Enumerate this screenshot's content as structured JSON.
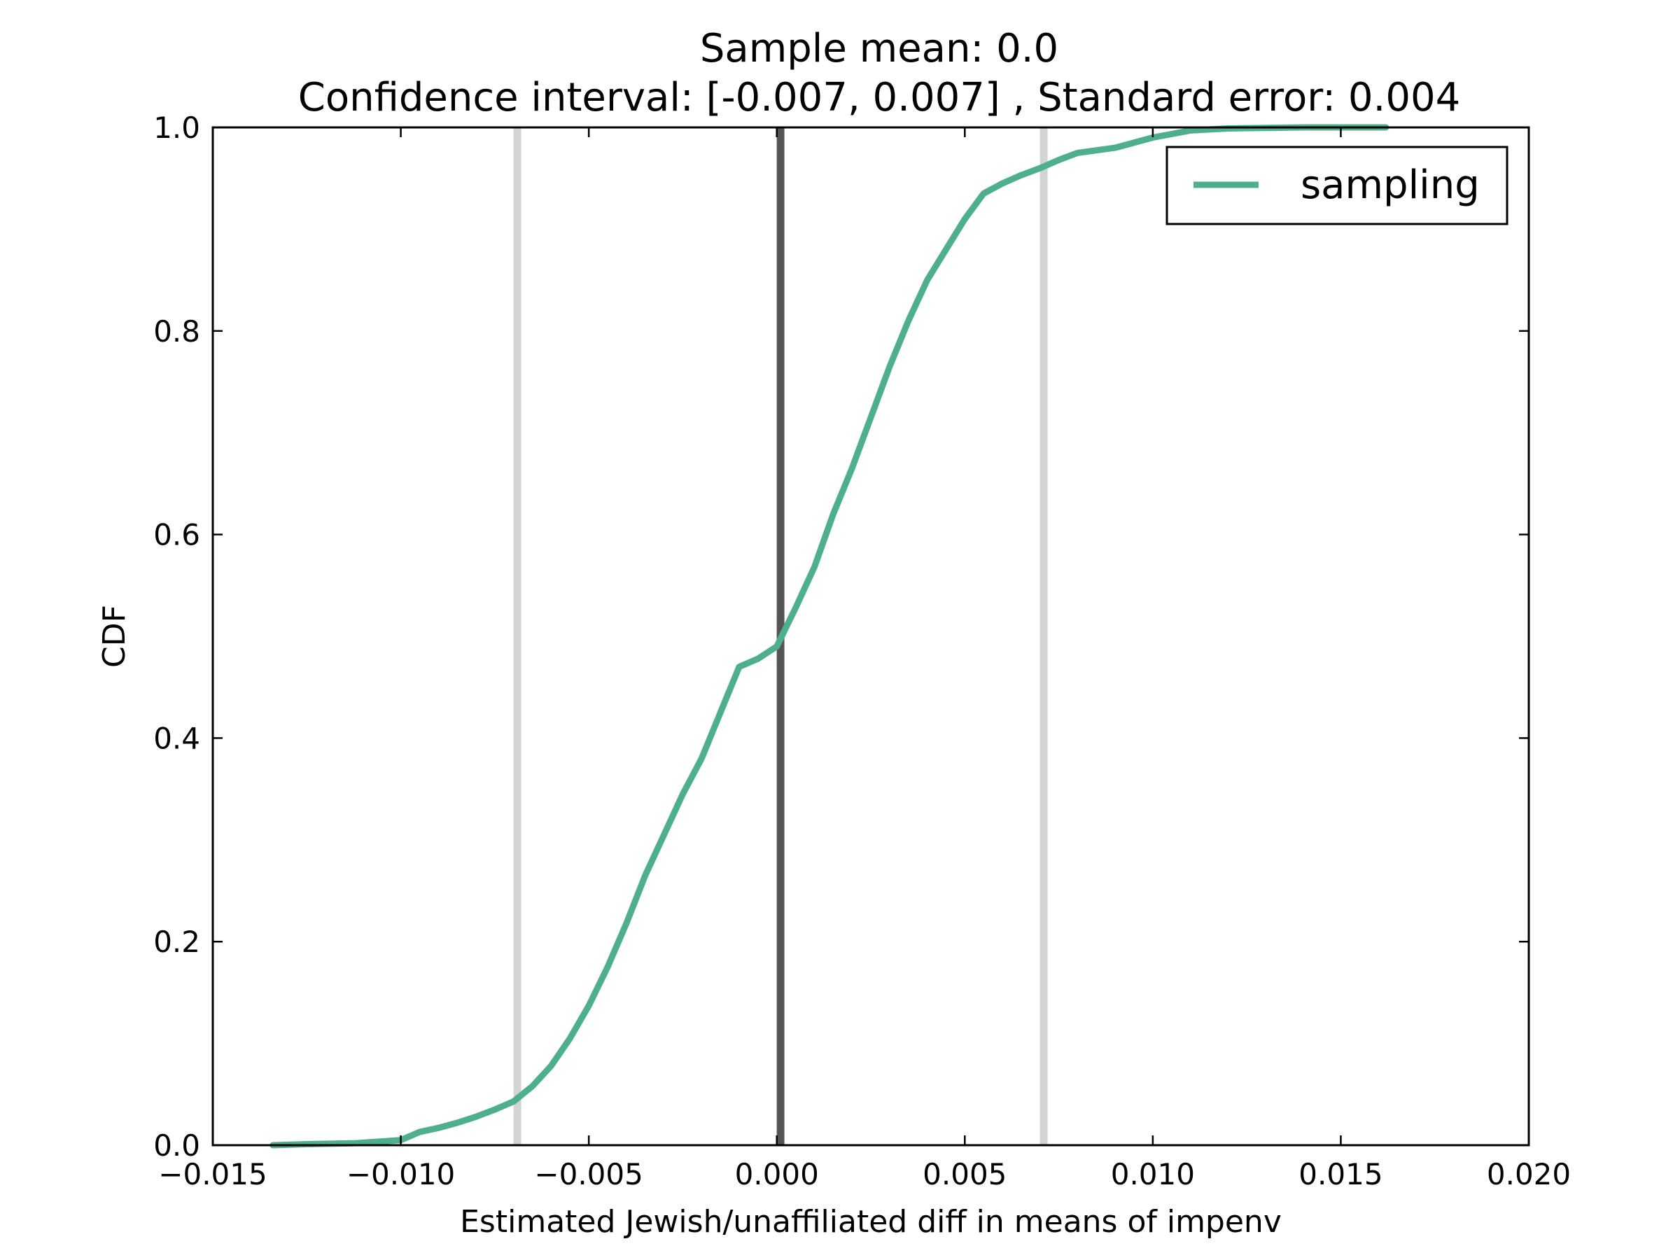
{
  "chart_data": {
    "type": "line",
    "title_line1": "Sample mean: 0.0",
    "title_line2": "Confidence interval: [-0.007, 0.007] , Standard error: 0.004",
    "xlabel": "Estimated Jewish/unaffiliated diff in means of impenv",
    "ylabel": "CDF",
    "xlim": [
      -0.015,
      0.02
    ],
    "ylim": [
      0.0,
      1.0
    ],
    "x_ticks": [
      -0.015,
      -0.01,
      -0.005,
      0.0,
      0.005,
      0.01,
      0.015,
      0.02
    ],
    "x_tick_labels": [
      "−0.015",
      "−0.010",
      "−0.005",
      "0.000",
      "0.005",
      "0.010",
      "0.015",
      "0.020"
    ],
    "y_ticks": [
      0.0,
      0.2,
      0.4,
      0.6,
      0.8,
      1.0
    ],
    "y_tick_labels": [
      "0.0",
      "0.2",
      "0.4",
      "0.6",
      "0.8",
      "1.0"
    ],
    "grid": false,
    "legend_position": "upper right",
    "series": [
      {
        "name": "sampling",
        "color": "#4daf8b",
        "x": [
          -0.0134,
          -0.0125,
          -0.0112,
          -0.01,
          -0.0095,
          -0.009,
          -0.0085,
          -0.008,
          -0.0075,
          -0.007,
          -0.0065,
          -0.006,
          -0.0055,
          -0.005,
          -0.0045,
          -0.004,
          -0.0035,
          -0.003,
          -0.0025,
          -0.002,
          -0.0015,
          -0.001,
          -0.0005,
          0.0,
          0.0005,
          0.001,
          0.0015,
          0.002,
          0.0025,
          0.003,
          0.0035,
          0.004,
          0.0045,
          0.005,
          0.0055,
          0.006,
          0.0065,
          0.007,
          0.0075,
          0.008,
          0.009,
          0.01,
          0.011,
          0.012,
          0.014,
          0.0162
        ],
        "y": [
          0.0,
          0.001,
          0.002,
          0.005,
          0.013,
          0.017,
          0.022,
          0.028,
          0.035,
          0.043,
          0.058,
          0.078,
          0.105,
          0.137,
          0.175,
          0.218,
          0.265,
          0.305,
          0.345,
          0.38,
          0.425,
          0.47,
          0.478,
          0.49,
          0.528,
          0.568,
          0.62,
          0.665,
          0.715,
          0.765,
          0.81,
          0.85,
          0.88,
          0.91,
          0.935,
          0.945,
          0.953,
          0.96,
          0.968,
          0.975,
          0.98,
          0.99,
          0.997,
          0.999,
          1.0,
          1.0
        ]
      }
    ],
    "vlines": [
      {
        "x": -0.0069,
        "color": "#d3d3d3"
      },
      {
        "x": 0.0001,
        "color": "#555555"
      },
      {
        "x": 0.0071,
        "color": "#d3d3d3"
      }
    ]
  }
}
